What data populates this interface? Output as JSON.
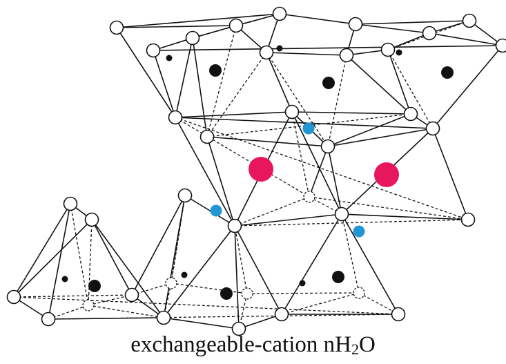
{
  "colors": {
    "line": "#111111",
    "oxygen_fill": "#ffffff",
    "oxygen_stroke": "#111111",
    "silicon_tetrahedral": "#111111",
    "aluminum_octahedral": "#111111",
    "hydroxyl": "#2196d3",
    "interlayer_cation": "#e8175d"
  },
  "caption": {
    "prefix": "exchangeable-cation nH",
    "subscript": "2",
    "suffix": "O"
  }
}
